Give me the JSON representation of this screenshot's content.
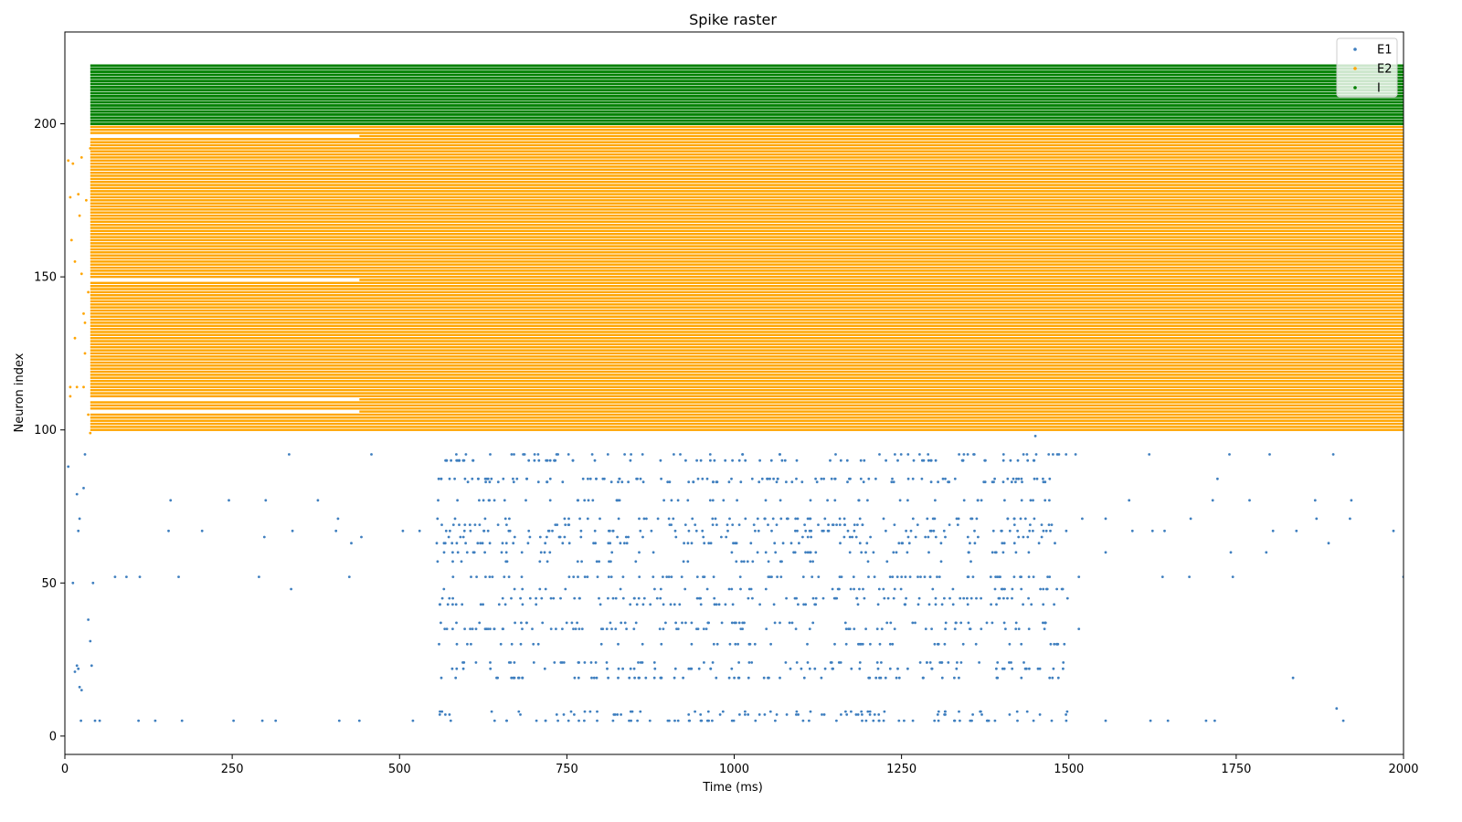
{
  "chart_data": {
    "type": "scatter",
    "title": "Spike raster",
    "xlabel": "Time (ms)",
    "ylabel": "Neuron index",
    "xlim": [
      0,
      2000
    ],
    "ylim": [
      -6,
      230
    ],
    "x_ticks": [
      0,
      250,
      500,
      750,
      1000,
      1250,
      1500,
      1750,
      2000
    ],
    "y_ticks": [
      0,
      50,
      100,
      150,
      200
    ],
    "grid": false,
    "legend_position": "top-right",
    "series": [
      {
        "name": "E1",
        "color": "#3f7fbf",
        "neuron_range": [
          0,
          99
        ],
        "regular_rows": [
          5,
          7,
          8,
          19,
          22,
          24,
          30,
          35,
          37,
          43,
          45,
          48,
          52,
          57,
          60,
          63,
          65,
          67,
          69,
          71,
          77,
          83,
          84,
          90,
          92
        ],
        "regular_window_ms": [
          555,
          1500
        ],
        "sparse_spikes": [
          [
            5,
            88
          ],
          [
            12,
            50
          ],
          [
            15,
            21
          ],
          [
            18,
            23
          ],
          [
            20,
            22
          ],
          [
            22,
            16
          ],
          [
            25,
            15
          ],
          [
            24,
            5
          ],
          [
            28,
            81
          ],
          [
            30,
            92
          ],
          [
            35,
            38
          ],
          [
            38,
            31
          ],
          [
            40,
            23
          ],
          [
            42,
            50
          ],
          [
            20,
            67
          ],
          [
            18,
            79
          ],
          [
            22,
            71
          ],
          [
            45,
            5
          ],
          [
            52,
            5
          ],
          [
            75,
            52
          ],
          [
            92,
            52
          ],
          [
            110,
            5
          ],
          [
            112,
            52
          ],
          [
            135,
            5
          ],
          [
            155,
            67
          ],
          [
            158,
            77
          ],
          [
            170,
            52
          ],
          [
            175,
            5
          ],
          [
            205,
            67
          ],
          [
            245,
            77
          ],
          [
            252,
            5
          ],
          [
            290,
            52
          ],
          [
            295,
            5
          ],
          [
            298,
            65
          ],
          [
            300,
            77
          ],
          [
            315,
            5
          ],
          [
            335,
            92
          ],
          [
            338,
            48
          ],
          [
            340,
            67
          ],
          [
            378,
            77
          ],
          [
            405,
            67
          ],
          [
            408,
            71
          ],
          [
            410,
            5
          ],
          [
            425,
            52
          ],
          [
            428,
            63
          ],
          [
            440,
            5
          ],
          [
            443,
            65
          ],
          [
            458,
            92
          ],
          [
            505,
            67
          ],
          [
            520,
            5
          ],
          [
            530,
            67
          ],
          [
            1450,
            98
          ],
          [
            1510,
            92
          ],
          [
            1515,
            52
          ],
          [
            1515,
            35
          ],
          [
            1520,
            71
          ],
          [
            1555,
            5
          ],
          [
            1555,
            60
          ],
          [
            1555,
            71
          ],
          [
            1590,
            77
          ],
          [
            1595,
            67
          ],
          [
            1620,
            92
          ],
          [
            1622,
            5
          ],
          [
            1625,
            67
          ],
          [
            1640,
            52
          ],
          [
            1643,
            67
          ],
          [
            1648,
            5
          ],
          [
            1680,
            52
          ],
          [
            1682,
            71
          ],
          [
            1705,
            5
          ],
          [
            1715,
            77
          ],
          [
            1718,
            5
          ],
          [
            1722,
            84
          ],
          [
            1740,
            92
          ],
          [
            1742,
            60
          ],
          [
            1745,
            52
          ],
          [
            1770,
            77
          ],
          [
            1795,
            60
          ],
          [
            1800,
            92
          ],
          [
            1805,
            67
          ],
          [
            1835,
            19
          ],
          [
            1840,
            67
          ],
          [
            1868,
            77
          ],
          [
            1870,
            71
          ],
          [
            1888,
            63
          ],
          [
            1895,
            92
          ],
          [
            1900,
            9
          ],
          [
            1910,
            5
          ],
          [
            1920,
            71
          ],
          [
            1922,
            77
          ],
          [
            1985,
            67
          ],
          [
            2000,
            52
          ]
        ]
      },
      {
        "name": "E2",
        "color": "#ffa500",
        "neuron_range": [
          100,
          199
        ],
        "dense_window_ms": [
          38,
          2000
        ],
        "silent_rows_until_440ms": [
          106,
          110,
          149,
          196
        ],
        "sparse_spikes": [
          [
            5,
            188
          ],
          [
            8,
            176
          ],
          [
            10,
            162
          ],
          [
            12,
            187
          ],
          [
            15,
            155
          ],
          [
            15,
            130
          ],
          [
            18,
            114
          ],
          [
            20,
            177
          ],
          [
            22,
            170
          ],
          [
            25,
            189
          ],
          [
            25,
            151
          ],
          [
            28,
            138
          ],
          [
            28,
            114
          ],
          [
            30,
            135
          ],
          [
            30,
            125
          ],
          [
            32,
            175
          ],
          [
            35,
            145
          ],
          [
            35,
            105
          ],
          [
            8,
            114
          ],
          [
            8,
            111
          ],
          [
            38,
            192
          ],
          [
            38,
            99
          ]
        ]
      },
      {
        "name": "I",
        "color": "#008000",
        "neuron_range": [
          200,
          219
        ],
        "dense_window_ms": [
          38,
          2000
        ]
      }
    ]
  }
}
